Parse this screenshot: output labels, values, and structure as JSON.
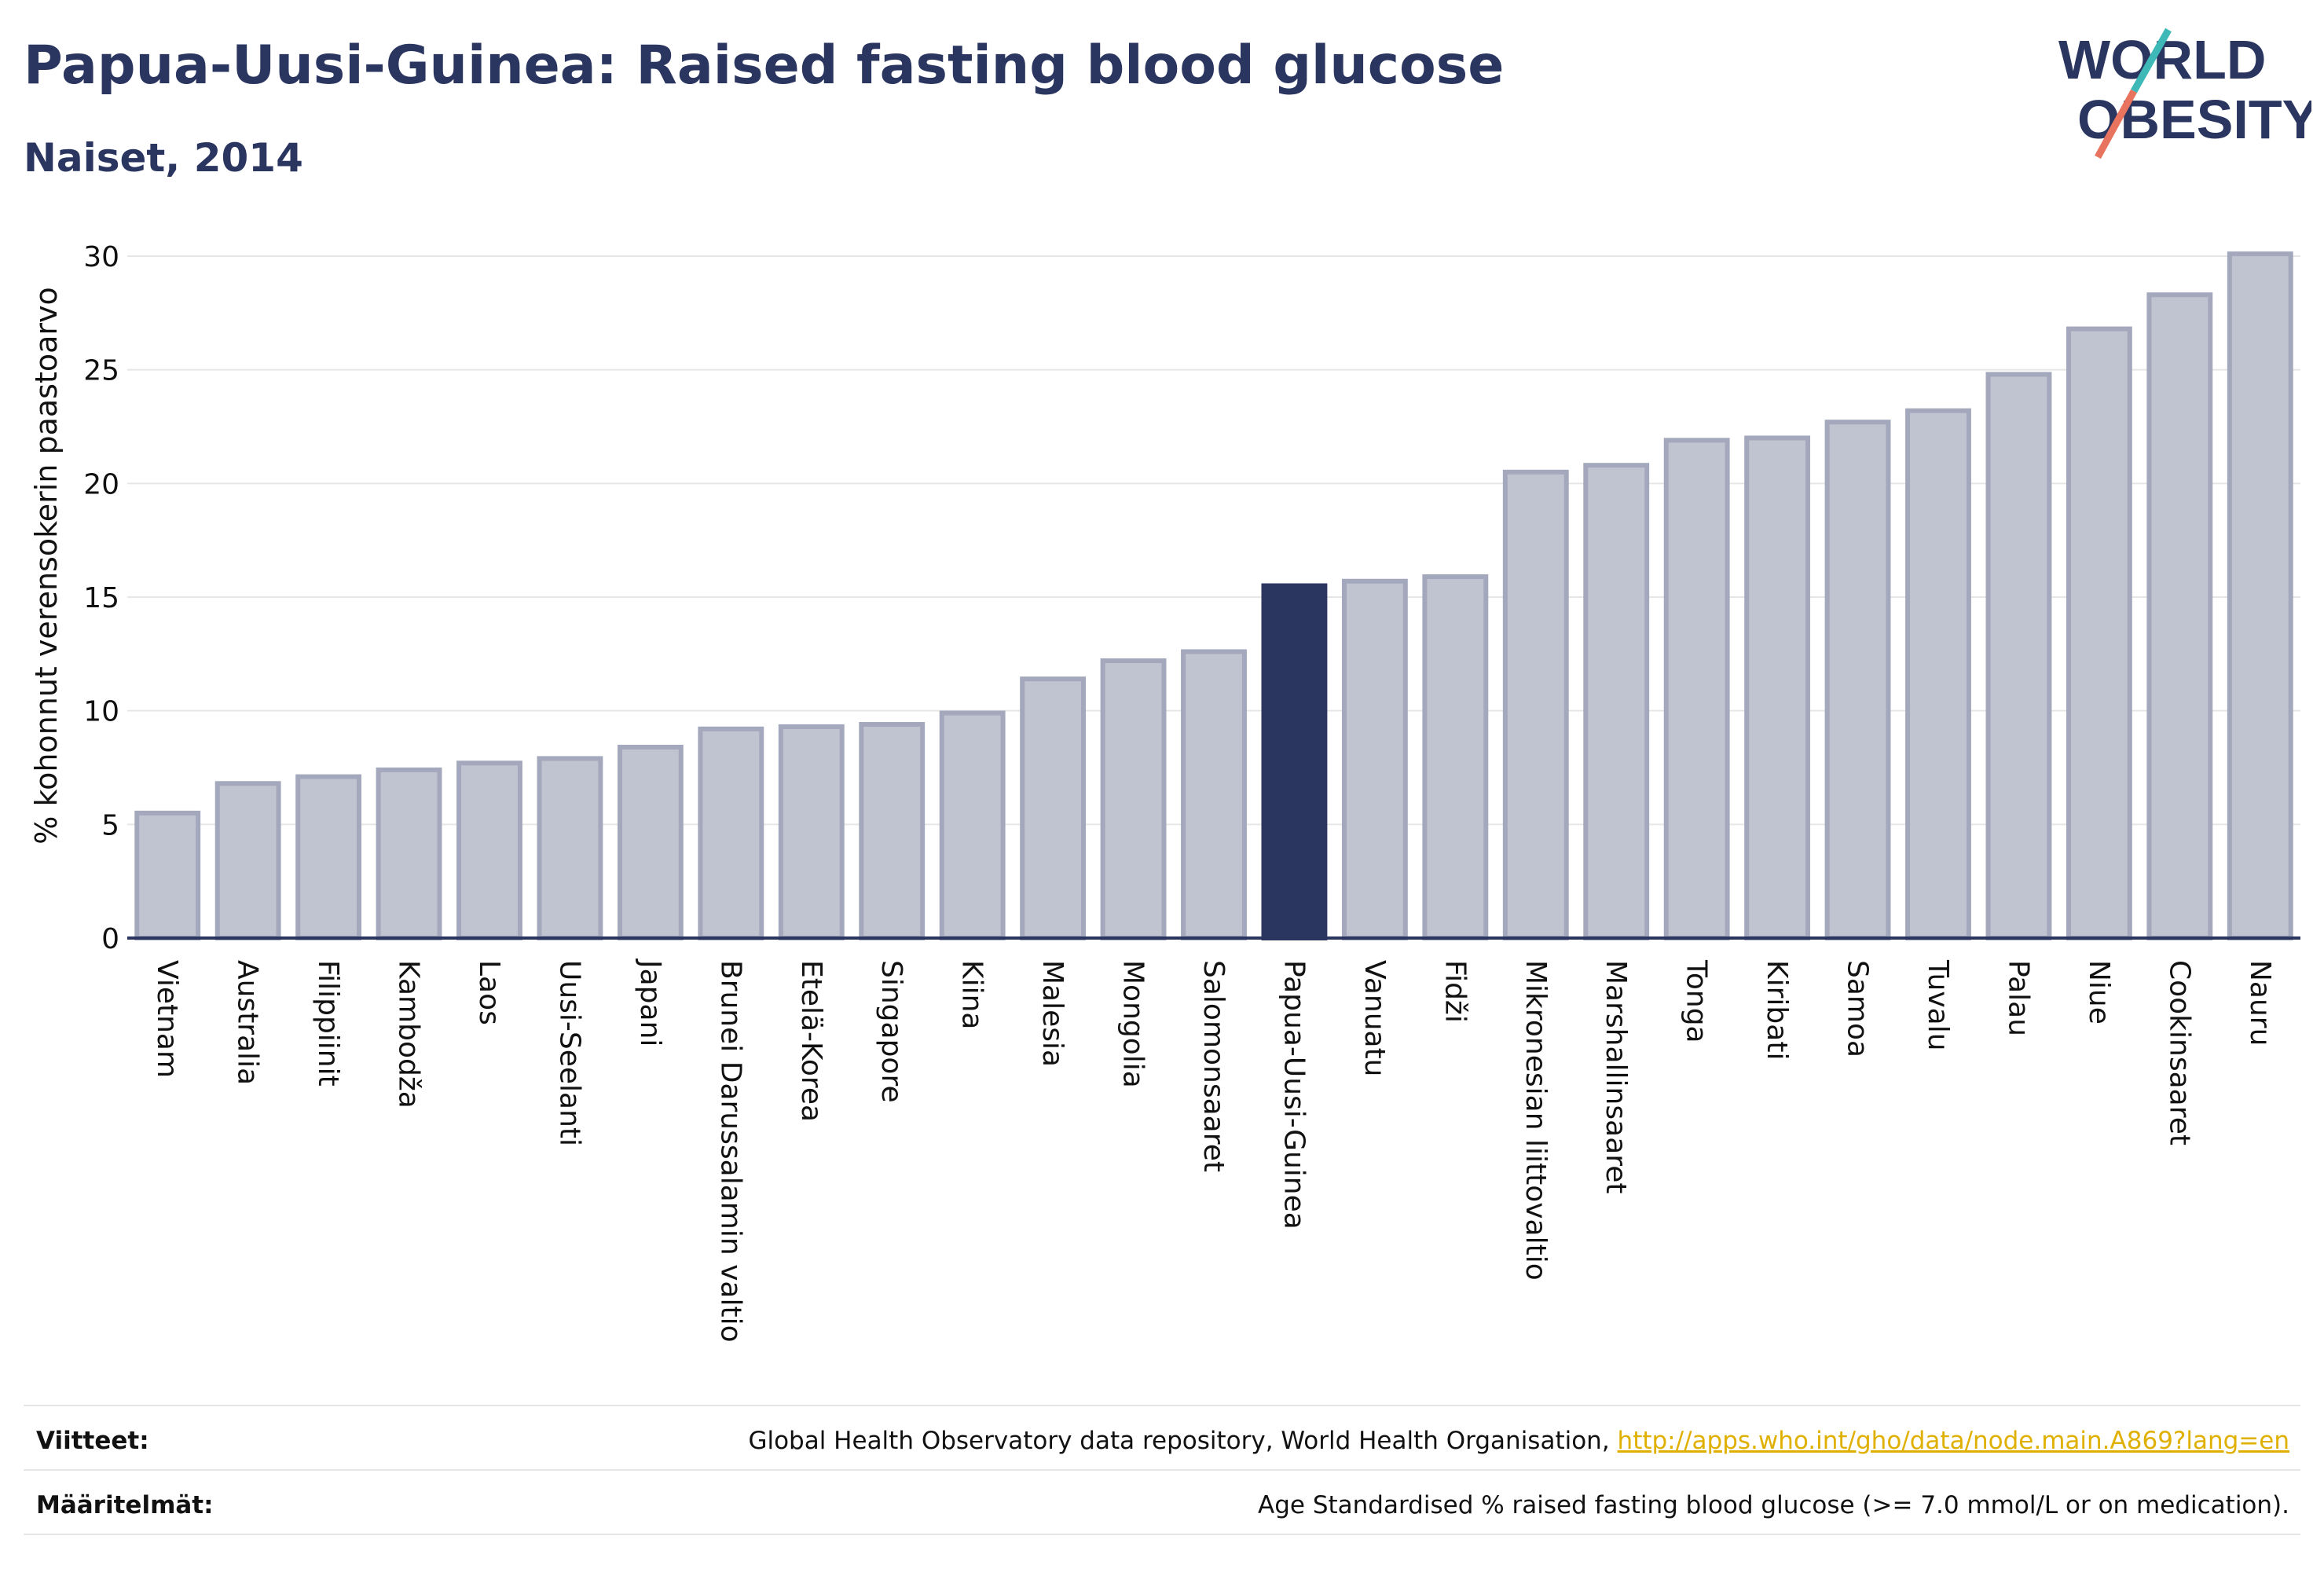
{
  "header": {
    "title": "Papua-Uusi-Guinea: Raised fasting blood glucose",
    "subtitle": "Naiset, 2014"
  },
  "logo": {
    "line1": "WORLD",
    "line2": "OBESITY"
  },
  "chart_data": {
    "type": "bar",
    "ylabel": "% kohonnut verensokerin paastoarvo",
    "ylim": [
      0,
      31
    ],
    "yticks": [
      0,
      5,
      10,
      15,
      20,
      25,
      30
    ],
    "grid": true,
    "highlight": "Papua-Uusi-Guinea",
    "categories": [
      "Vietnam",
      "Australia",
      "Filippiinit",
      "Kambodža",
      "Laos",
      "Uusi-Seelanti",
      "Japani",
      "Brunei Darussalamin valtio",
      "Etelä-Korea",
      "Singapore",
      "Kiina",
      "Malesia",
      "Mongolia",
      "Salomonsaaret",
      "Papua-Uusi-Guinea",
      "Vanuatu",
      "Fidži",
      "Mikronesian liittovaltio",
      "Marshallinsaaret",
      "Tonga",
      "Kiribati",
      "Samoa",
      "Tuvalu",
      "Palau",
      "Niue",
      "Cookinsaaret",
      "Nauru"
    ],
    "values": [
      5.5,
      6.8,
      7.1,
      7.4,
      7.7,
      7.9,
      8.4,
      9.2,
      9.3,
      9.4,
      9.9,
      11.4,
      12.2,
      12.6,
      15.5,
      15.7,
      15.9,
      20.5,
      20.8,
      21.9,
      22.0,
      22.7,
      23.2,
      24.8,
      26.8,
      28.3,
      30.1
    ],
    "colors": {
      "bar": "#c0c3d0",
      "bar_border": "#a3a8bc",
      "highlight": "#2a3560",
      "grid": "#e6e6e6",
      "axis": "#2a3560"
    }
  },
  "footer": {
    "sources_label": "Viitteet:",
    "sources_text": "Global Health Observatory data repository, World Health Organisation,",
    "sources_link": "http://apps.who.int/gho/data/node.main.A869?lang=en",
    "definitions_label": "Määritelmät:",
    "definitions_text": "Age Standardised % raised fasting blood glucose (>= 7.0 mmol/L or on medication)."
  }
}
